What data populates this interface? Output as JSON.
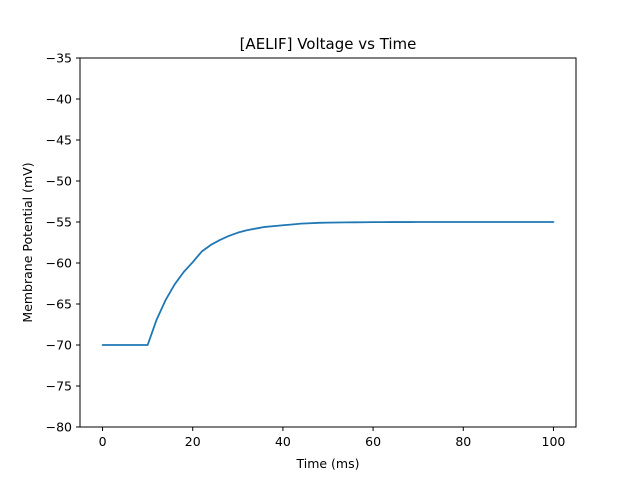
{
  "chart_data": {
    "type": "line",
    "title": "[AELIF] Voltage vs Time",
    "xlabel": "Time (ms)",
    "ylabel": "Membrane Potential (mV)",
    "xlim": [
      -5,
      105
    ],
    "ylim": [
      -80,
      -35
    ],
    "x_ticks": [
      0,
      20,
      40,
      60,
      80,
      100
    ],
    "y_ticks": [
      -80,
      -75,
      -70,
      -65,
      -60,
      -55,
      -50,
      -45,
      -40,
      -35
    ],
    "x_tick_labels": [
      "0",
      "20",
      "40",
      "60",
      "80",
      "100"
    ],
    "y_tick_labels": [
      "−80",
      "−75",
      "−70",
      "−65",
      "−60",
      "−55",
      "−50",
      "−45",
      "−40",
      "−35"
    ],
    "grid": false,
    "series": [
      {
        "color": "#1f77b4",
        "x": [
          0,
          2,
          4,
          6,
          8,
          10,
          12,
          14,
          16,
          18,
          20,
          22,
          24,
          26,
          28,
          30,
          32,
          34,
          36,
          38,
          40,
          42,
          44,
          46,
          48,
          50,
          52,
          54,
          56,
          58,
          60,
          62,
          64,
          66,
          68,
          70,
          72,
          74,
          76,
          78,
          80,
          82,
          84,
          86,
          88,
          90,
          92,
          94,
          96,
          98,
          100
        ],
        "y": [
          -70.0,
          -70.0,
          -70.0,
          -70.0,
          -70.0,
          -70.0,
          -66.9,
          -64.5,
          -62.6,
          -61.1,
          -59.9,
          -58.6,
          -57.8,
          -57.2,
          -56.7,
          -56.3,
          -56.0,
          -55.8,
          -55.6,
          -55.5,
          -55.4,
          -55.3,
          -55.2,
          -55.15,
          -55.1,
          -55.08,
          -55.06,
          -55.05,
          -55.04,
          -55.03,
          -55.02,
          -55.02,
          -55.01,
          -55.01,
          -55.01,
          -55.0,
          -55.0,
          -55.0,
          -55.0,
          -55.0,
          -55.0,
          -55.0,
          -55.0,
          -55.0,
          -55.0,
          -55.0,
          -55.0,
          -55.0,
          -55.0,
          -55.0,
          -55.0
        ]
      }
    ]
  }
}
